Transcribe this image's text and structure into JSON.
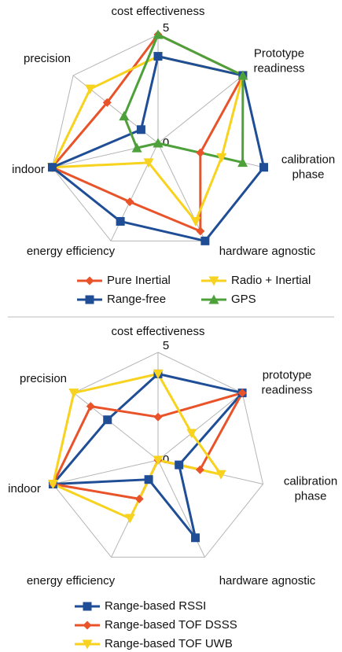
{
  "chart_data": [
    {
      "type": "radar",
      "axes": [
        [
          "cost effectiveness"
        ],
        [
          "Prototype",
          "readiness"
        ],
        [
          "calibration",
          "phase"
        ],
        [
          "hardware agnostic"
        ],
        [
          "energy efficiency"
        ],
        [
          "indoor"
        ],
        [
          "precision"
        ]
      ],
      "rlim": [
        0,
        5
      ],
      "rticks": [
        0,
        5
      ],
      "grid": true,
      "series": [
        {
          "name": "Pure Inertial",
          "color": "#e8532a",
          "marker": "diamond",
          "values": [
            5,
            5,
            2,
            4.5,
            3,
            5,
            3
          ]
        },
        {
          "name": "Radio + Inertial",
          "color": "#f7d21e",
          "marker": "triangle-down",
          "values": [
            4,
            5,
            3,
            4,
            1,
            5,
            4
          ]
        },
        {
          "name": "Range-free",
          "color": "#1f4e96",
          "marker": "square",
          "values": [
            4,
            5,
            5,
            5,
            4,
            5,
            1
          ]
        },
        {
          "name": "GPS",
          "color": "#4ea03a",
          "marker": "triangle-up",
          "values": [
            5,
            5,
            4,
            0,
            0,
            1,
            2
          ]
        }
      ]
    },
    {
      "type": "radar",
      "axes": [
        [
          "cost effectiveness"
        ],
        [
          "prototype",
          "readiness"
        ],
        [
          "calibration",
          "phase"
        ],
        [
          "hardware agnostic"
        ],
        [
          "energy efficiency"
        ],
        [
          "indoor"
        ],
        [
          "precision"
        ]
      ],
      "rlim": [
        0,
        5
      ],
      "rticks": [
        0,
        5
      ],
      "grid": true,
      "series": [
        {
          "name": "Range-based RSSI",
          "color": "#1f4e96",
          "marker": "square",
          "values": [
            4,
            5,
            1,
            4,
            1,
            5,
            3
          ]
        },
        {
          "name": "Range-based TOF DSSS",
          "color": "#e8532a",
          "marker": "diamond",
          "values": [
            2,
            5,
            2,
            0,
            2,
            5,
            4
          ]
        },
        {
          "name": "Range-based TOF UWB",
          "color": "#f7d21e",
          "marker": "triangle-down",
          "values": [
            4,
            2,
            3,
            0,
            3,
            5,
            5
          ]
        }
      ]
    }
  ]
}
